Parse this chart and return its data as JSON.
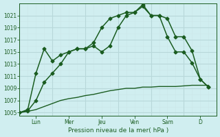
{
  "xlabel": "Pression niveau de la mer( hPa )",
  "bg_color": "#d0eef0",
  "grid_color_major": "#b8d8da",
  "grid_color_minor": "#cce8ea",
  "line_color": "#1a5c20",
  "ylim": [
    1004.5,
    1023.0
  ],
  "yticks": [
    1005,
    1007,
    1009,
    1011,
    1013,
    1015,
    1017,
    1019,
    1021
  ],
  "x_day_labels": [
    "Lun",
    "Mer",
    "Jeu",
    "Ven",
    "Sam",
    "D"
  ],
  "x_day_positions": [
    1.0,
    3.0,
    5.0,
    7.0,
    9.0,
    11.0
  ],
  "x_day_vlines": [
    0.0,
    2.0,
    4.0,
    6.0,
    8.0,
    10.0,
    12.0
  ],
  "xlim": [
    0,
    12.0
  ],
  "series1": {
    "x": [
      0.0,
      0.5,
      1.0,
      1.5,
      2.0,
      2.5,
      3.0,
      3.5,
      4.0,
      4.5,
      5.0,
      5.5,
      6.0,
      6.5,
      7.0,
      7.5,
      8.0,
      8.5,
      9.0,
      9.5,
      10.0,
      10.5,
      11.0,
      11.5
    ],
    "y": [
      1005.0,
      1005.5,
      1011.5,
      1015.5,
      1013.5,
      1014.5,
      1015.0,
      1015.5,
      1015.5,
      1016.0,
      1015.0,
      1016.0,
      1019.0,
      1021.0,
      1021.5,
      1022.5,
      1021.0,
      1021.0,
      1017.5,
      1015.0,
      1015.0,
      1013.2,
      1010.5,
      1009.2
    ],
    "marker": "D",
    "markersize": 2.5,
    "linewidth": 1.1
  },
  "series2": {
    "x": [
      0.0,
      0.5,
      1.0,
      1.5,
      2.0,
      2.5,
      3.0,
      3.5,
      4.0,
      4.5,
      5.0,
      5.5,
      6.0,
      6.5,
      7.0,
      7.5,
      8.0,
      8.5,
      9.0,
      9.5,
      10.0,
      10.5,
      11.0,
      11.5
    ],
    "y": [
      1005.0,
      1005.3,
      1007.0,
      1010.0,
      1011.5,
      1013.0,
      1015.0,
      1015.5,
      1015.5,
      1016.5,
      1019.0,
      1020.5,
      1021.0,
      1021.5,
      1021.5,
      1022.8,
      1021.0,
      1021.0,
      1020.5,
      1017.5,
      1017.5,
      1015.2,
      1010.5,
      1009.2
    ],
    "marker": "D",
    "markersize": 2.5,
    "linewidth": 1.1
  },
  "series3": {
    "x": [
      0.0,
      0.5,
      1.0,
      1.5,
      2.0,
      2.5,
      3.0,
      3.5,
      4.0,
      4.5,
      5.0,
      5.5,
      6.0,
      6.5,
      7.0,
      7.5,
      8.0,
      8.5,
      9.0,
      9.5,
      10.0,
      10.5,
      11.0,
      11.5
    ],
    "y": [
      1005.0,
      1005.2,
      1005.5,
      1006.0,
      1006.5,
      1007.0,
      1007.3,
      1007.5,
      1007.8,
      1008.0,
      1008.3,
      1008.6,
      1008.8,
      1009.0,
      1009.0,
      1009.2,
      1009.2,
      1009.3,
      1009.3,
      1009.3,
      1009.4,
      1009.5,
      1009.5,
      1009.5
    ],
    "marker": null,
    "markersize": 0,
    "linewidth": 1.0
  }
}
